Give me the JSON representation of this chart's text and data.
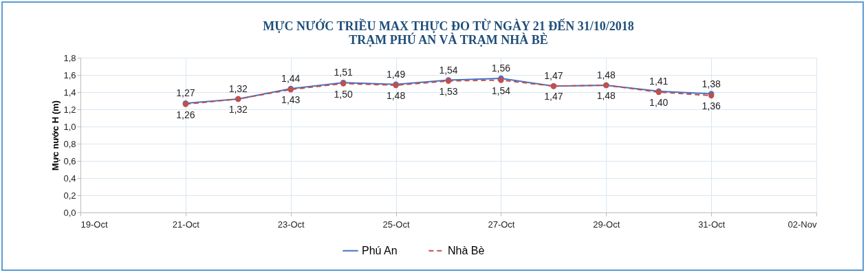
{
  "chart_data": {
    "type": "line",
    "title": "MỰC NƯỚC TRIỀU MAX THỰC ĐO TỪ NGÀY 21 ĐẾN 31/10/2018\nTRẠM PHÚ AN VÀ TRẠM NHÀ BÈ",
    "ylabel": "Mực nước H (m)",
    "x": [
      "2018-10-21",
      "2018-10-22",
      "2018-10-23",
      "2018-10-24",
      "2018-10-25",
      "2018-10-26",
      "2018-10-27",
      "2018-10-28",
      "2018-10-29",
      "2018-10-30",
      "2018-10-31"
    ],
    "series": [
      {
        "name": "Phú An",
        "color": "#4472c4",
        "line_style": "solid",
        "values": [
          1.27,
          1.32,
          1.44,
          1.51,
          1.49,
          1.54,
          1.56,
          1.47,
          1.48,
          1.41,
          1.38
        ],
        "value_labels": [
          "1,27",
          "1,32",
          "1,44",
          "1,51",
          "1,49",
          "1,54",
          "1,56",
          "1,47",
          "1,48",
          "1,41",
          "1,38"
        ]
      },
      {
        "name": "Nhà Bè",
        "color": "#c0504d",
        "line_style": "dashed",
        "values": [
          1.26,
          1.32,
          1.43,
          1.5,
          1.48,
          1.53,
          1.54,
          1.47,
          1.48,
          1.4,
          1.36
        ],
        "value_labels": [
          "1,26",
          "1,32",
          "1,43",
          "1,50",
          "1,48",
          "1,53",
          "1,54",
          "1,47",
          "1,48",
          "1,40",
          "1,36"
        ]
      }
    ],
    "xlim": [
      "2018-10-19",
      "2018-11-02"
    ],
    "xticks": [
      {
        "value": "2018-10-19",
        "label": "19-Oct"
      },
      {
        "value": "2018-10-21",
        "label": "21-Oct"
      },
      {
        "value": "2018-10-23",
        "label": "23-Oct"
      },
      {
        "value": "2018-10-25",
        "label": "25-Oct"
      },
      {
        "value": "2018-10-27",
        "label": "27-Oct"
      },
      {
        "value": "2018-10-29",
        "label": "29-Oct"
      },
      {
        "value": "2018-10-31",
        "label": "31-Oct"
      },
      {
        "value": "2018-11-02",
        "label": "02-Nov"
      }
    ],
    "ylim": [
      0,
      1.8
    ],
    "yticks": [
      {
        "value": 0,
        "label": "0,0"
      },
      {
        "value": 0.2,
        "label": "0,2"
      },
      {
        "value": 0.4,
        "label": "0,4"
      },
      {
        "value": 0.6,
        "label": "0,6"
      },
      {
        "value": 0.8,
        "label": "0,8"
      },
      {
        "value": 1,
        "label": "1,0"
      },
      {
        "value": 1.2,
        "label": "1,2"
      },
      {
        "value": 1.4,
        "label": "1,4"
      },
      {
        "value": 1.6,
        "label": "1,6"
      },
      {
        "value": 1.8,
        "label": "1,8"
      }
    ],
    "grid": true,
    "legend": "bottom",
    "marker": "circle"
  }
}
